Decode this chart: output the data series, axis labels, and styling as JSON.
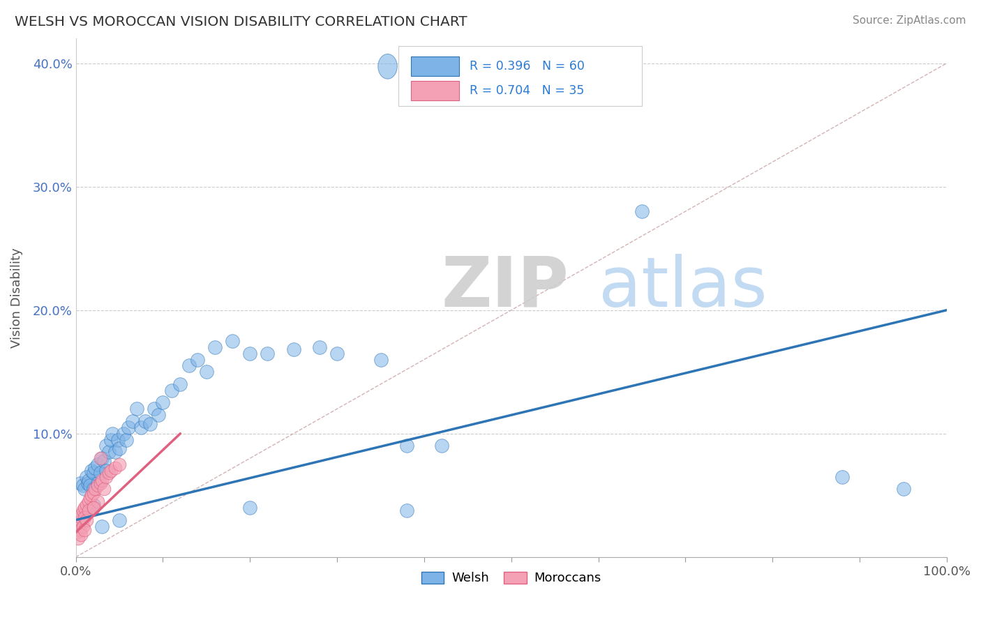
{
  "title": "WELSH VS MOROCCAN VISION DISABILITY CORRELATION CHART",
  "source": "Source: ZipAtlas.com",
  "ylabel": "Vision Disability",
  "xlim": [
    0,
    1.0
  ],
  "ylim": [
    0,
    0.42
  ],
  "xtick_positions": [
    0.0,
    0.1,
    0.2,
    0.3,
    0.4,
    0.5,
    0.6,
    0.7,
    0.8,
    0.9,
    1.0
  ],
  "xticklabels": [
    "0.0%",
    "",
    "",
    "",
    "",
    "",
    "",
    "",
    "",
    "",
    "100.0%"
  ],
  "ytick_positions": [
    0.0,
    0.1,
    0.2,
    0.3,
    0.4
  ],
  "yticklabels": [
    "",
    "10.0%",
    "20.0%",
    "30.0%",
    "40.0%"
  ],
  "legend_welsh_r": "R = 0.396",
  "legend_welsh_n": "N = 60",
  "legend_moroccan_r": "R = 0.704",
  "legend_moroccan_n": "N = 35",
  "welsh_color": "#7EB3E8",
  "moroccan_color": "#F4A0B5",
  "welsh_line_color": "#2E75B6",
  "moroccan_line_color": "#E06080",
  "diagonal_color": "#C8A0A0",
  "watermark_zip": "ZIP",
  "watermark_atlas": "atlas",
  "background": "#ffffff",
  "welsh_x": [
    0.005,
    0.008,
    0.01,
    0.012,
    0.014,
    0.015,
    0.016,
    0.018,
    0.02,
    0.02,
    0.022,
    0.025,
    0.025,
    0.028,
    0.03,
    0.032,
    0.035,
    0.035,
    0.038,
    0.04,
    0.042,
    0.045,
    0.048,
    0.05,
    0.055,
    0.058,
    0.06,
    0.065,
    0.07,
    0.075,
    0.08,
    0.085,
    0.09,
    0.095,
    0.1,
    0.11,
    0.12,
    0.13,
    0.14,
    0.15,
    0.16,
    0.18,
    0.2,
    0.22,
    0.25,
    0.28,
    0.3,
    0.35,
    0.38,
    0.42,
    0.01,
    0.015,
    0.02,
    0.03,
    0.05,
    0.2,
    0.38,
    0.65,
    0.88,
    0.95
  ],
  "welsh_y": [
    0.06,
    0.058,
    0.055,
    0.065,
    0.06,
    0.062,
    0.058,
    0.07,
    0.068,
    0.055,
    0.072,
    0.075,
    0.06,
    0.068,
    0.08,
    0.078,
    0.07,
    0.09,
    0.085,
    0.095,
    0.1,
    0.085,
    0.095,
    0.088,
    0.1,
    0.095,
    0.105,
    0.11,
    0.12,
    0.105,
    0.11,
    0.108,
    0.12,
    0.115,
    0.125,
    0.135,
    0.14,
    0.155,
    0.16,
    0.15,
    0.17,
    0.175,
    0.165,
    0.165,
    0.168,
    0.17,
    0.165,
    0.16,
    0.09,
    0.09,
    0.035,
    0.038,
    0.042,
    0.025,
    0.03,
    0.04,
    0.038,
    0.28,
    0.065,
    0.055
  ],
  "moroccan_x": [
    0.002,
    0.003,
    0.004,
    0.005,
    0.005,
    0.006,
    0.007,
    0.008,
    0.008,
    0.01,
    0.01,
    0.012,
    0.012,
    0.015,
    0.015,
    0.016,
    0.018,
    0.02,
    0.02,
    0.022,
    0.025,
    0.025,
    0.028,
    0.03,
    0.032,
    0.035,
    0.038,
    0.04,
    0.045,
    0.05,
    0.003,
    0.006,
    0.01,
    0.02,
    0.028
  ],
  "moroccan_y": [
    0.02,
    0.025,
    0.028,
    0.03,
    0.022,
    0.032,
    0.035,
    0.038,
    0.025,
    0.04,
    0.032,
    0.042,
    0.03,
    0.045,
    0.038,
    0.048,
    0.05,
    0.052,
    0.04,
    0.055,
    0.058,
    0.045,
    0.06,
    0.062,
    0.055,
    0.065,
    0.068,
    0.07,
    0.072,
    0.075,
    0.015,
    0.018,
    0.022,
    0.04,
    0.08
  ],
  "welsh_trend_x0": 0.0,
  "welsh_trend_y0": 0.03,
  "welsh_trend_x1": 1.0,
  "welsh_trend_y1": 0.2,
  "moroccan_trend_x0": 0.0,
  "moroccan_trend_y0": 0.02,
  "moroccan_trend_x1": 0.12,
  "moroccan_trend_y1": 0.1
}
